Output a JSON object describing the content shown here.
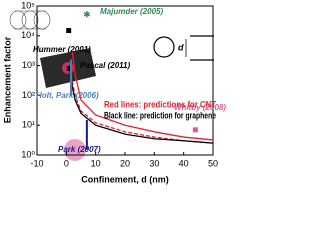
{
  "chart_data": {
    "type": "line",
    "log_y": true,
    "x_label": "Confinement, d (nm)",
    "y_label": "Enhancement factor",
    "xlim": [
      -10,
      50
    ],
    "xticks": [
      -10,
      0,
      10,
      20,
      30,
      40,
      50
    ],
    "ylim": [
      1,
      100000
    ],
    "yticks": [
      {
        "value": 1,
        "label": "10⁰"
      },
      {
        "value": 10,
        "label": "10¹"
      },
      {
        "value": 100,
        "label": "10²"
      },
      {
        "value": 1000,
        "label": "10³"
      },
      {
        "value": 10000,
        "label": "10⁴"
      },
      {
        "value": 100000,
        "label": "10⁵"
      }
    ],
    "series": [
      {
        "color": "#e8202a",
        "dash": false,
        "x": [
          2,
          3,
          5,
          10,
          20,
          30,
          40,
          50
        ],
        "values": [
          3000,
          500,
          70,
          22,
          10,
          6,
          4,
          3.2
        ]
      },
      {
        "color": "#e8202a",
        "dash": true,
        "x": [
          2,
          3,
          5,
          10,
          20,
          30,
          40,
          50
        ],
        "values": [
          300,
          100,
          30,
          12,
          6,
          4,
          3,
          2.5
        ]
      },
      {
        "color": "#000000",
        "dash": false,
        "x": [
          1,
          2,
          3,
          5,
          10,
          20,
          30,
          40,
          50
        ],
        "values": [
          1000,
          200,
          70,
          25,
          10,
          5,
          3.5,
          3,
          2.5
        ]
      }
    ],
    "points": [
      {
        "label": "Majumder (2005)",
        "color": "#2e8b57",
        "x": 7,
        "y": 50000
      },
      {
        "label": "Hummer (2001)",
        "color": "#000000",
        "x": 0.8,
        "y": 15000
      },
      {
        "label": "Pascal (2011)",
        "color": "#000000",
        "x": 1,
        "y": 800
      },
      {
        "label": "Holt, Park (2006)",
        "color": "#4a7fc1",
        "x": 1.6,
        "range": [
          100,
          1600
        ]
      },
      {
        "label": "Park (2007)",
        "color": "#1a1a8c",
        "x": 7,
        "range": [
          1.5,
          15
        ]
      },
      {
        "label": "Whitby (2008)",
        "color": "#e05a9a",
        "x": 44,
        "y": 7
      }
    ],
    "notes": [
      {
        "text": "Red lines: predictions for CNT",
        "color": "#e8202a"
      },
      {
        "text": "Black line: prediction for graphene",
        "color": "#000000"
      }
    ],
    "diagram_label": "d"
  }
}
